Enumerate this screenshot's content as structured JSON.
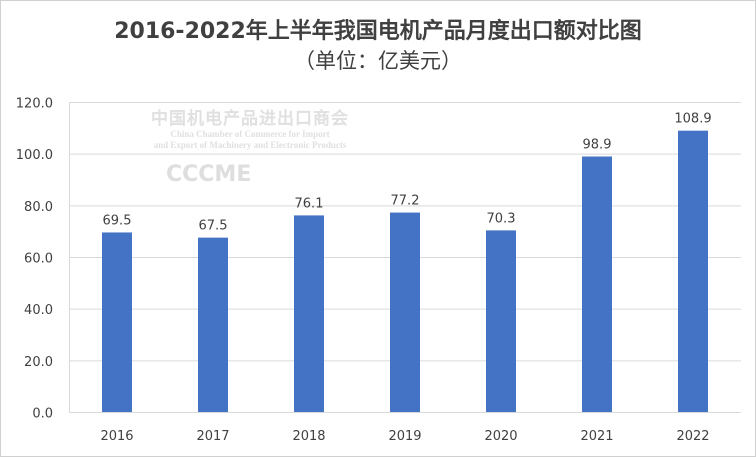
{
  "watermark": {
    "logo": "CCCME",
    "org_cn": "中国机电产品进出口商会",
    "org_en_1": "China Chamber of Commerce for Import",
    "org_en_2": "and Export of Machinery and Electronic Products"
  },
  "chart_data": {
    "type": "bar",
    "title": "2016-2022年上半年我国电机产品月度出口额对比图",
    "subtitle": "（单位：亿美元）",
    "categories": [
      "2016",
      "2017",
      "2018",
      "2019",
      "2020",
      "2021",
      "2022"
    ],
    "values": [
      69.5,
      67.5,
      76.1,
      77.2,
      70.3,
      98.9,
      108.9
    ],
    "data_labels": [
      "69.5",
      "67.5",
      "76.1",
      "77.2",
      "70.3",
      "98.9",
      "108.9"
    ],
    "ylim": [
      0,
      120
    ],
    "yticks": [
      "0.0",
      "20.0",
      "40.0",
      "60.0",
      "80.0",
      "100.0",
      "120.0"
    ],
    "xlabel": "",
    "ylabel": "",
    "grid": true,
    "bar_color": "#4472c4"
  }
}
